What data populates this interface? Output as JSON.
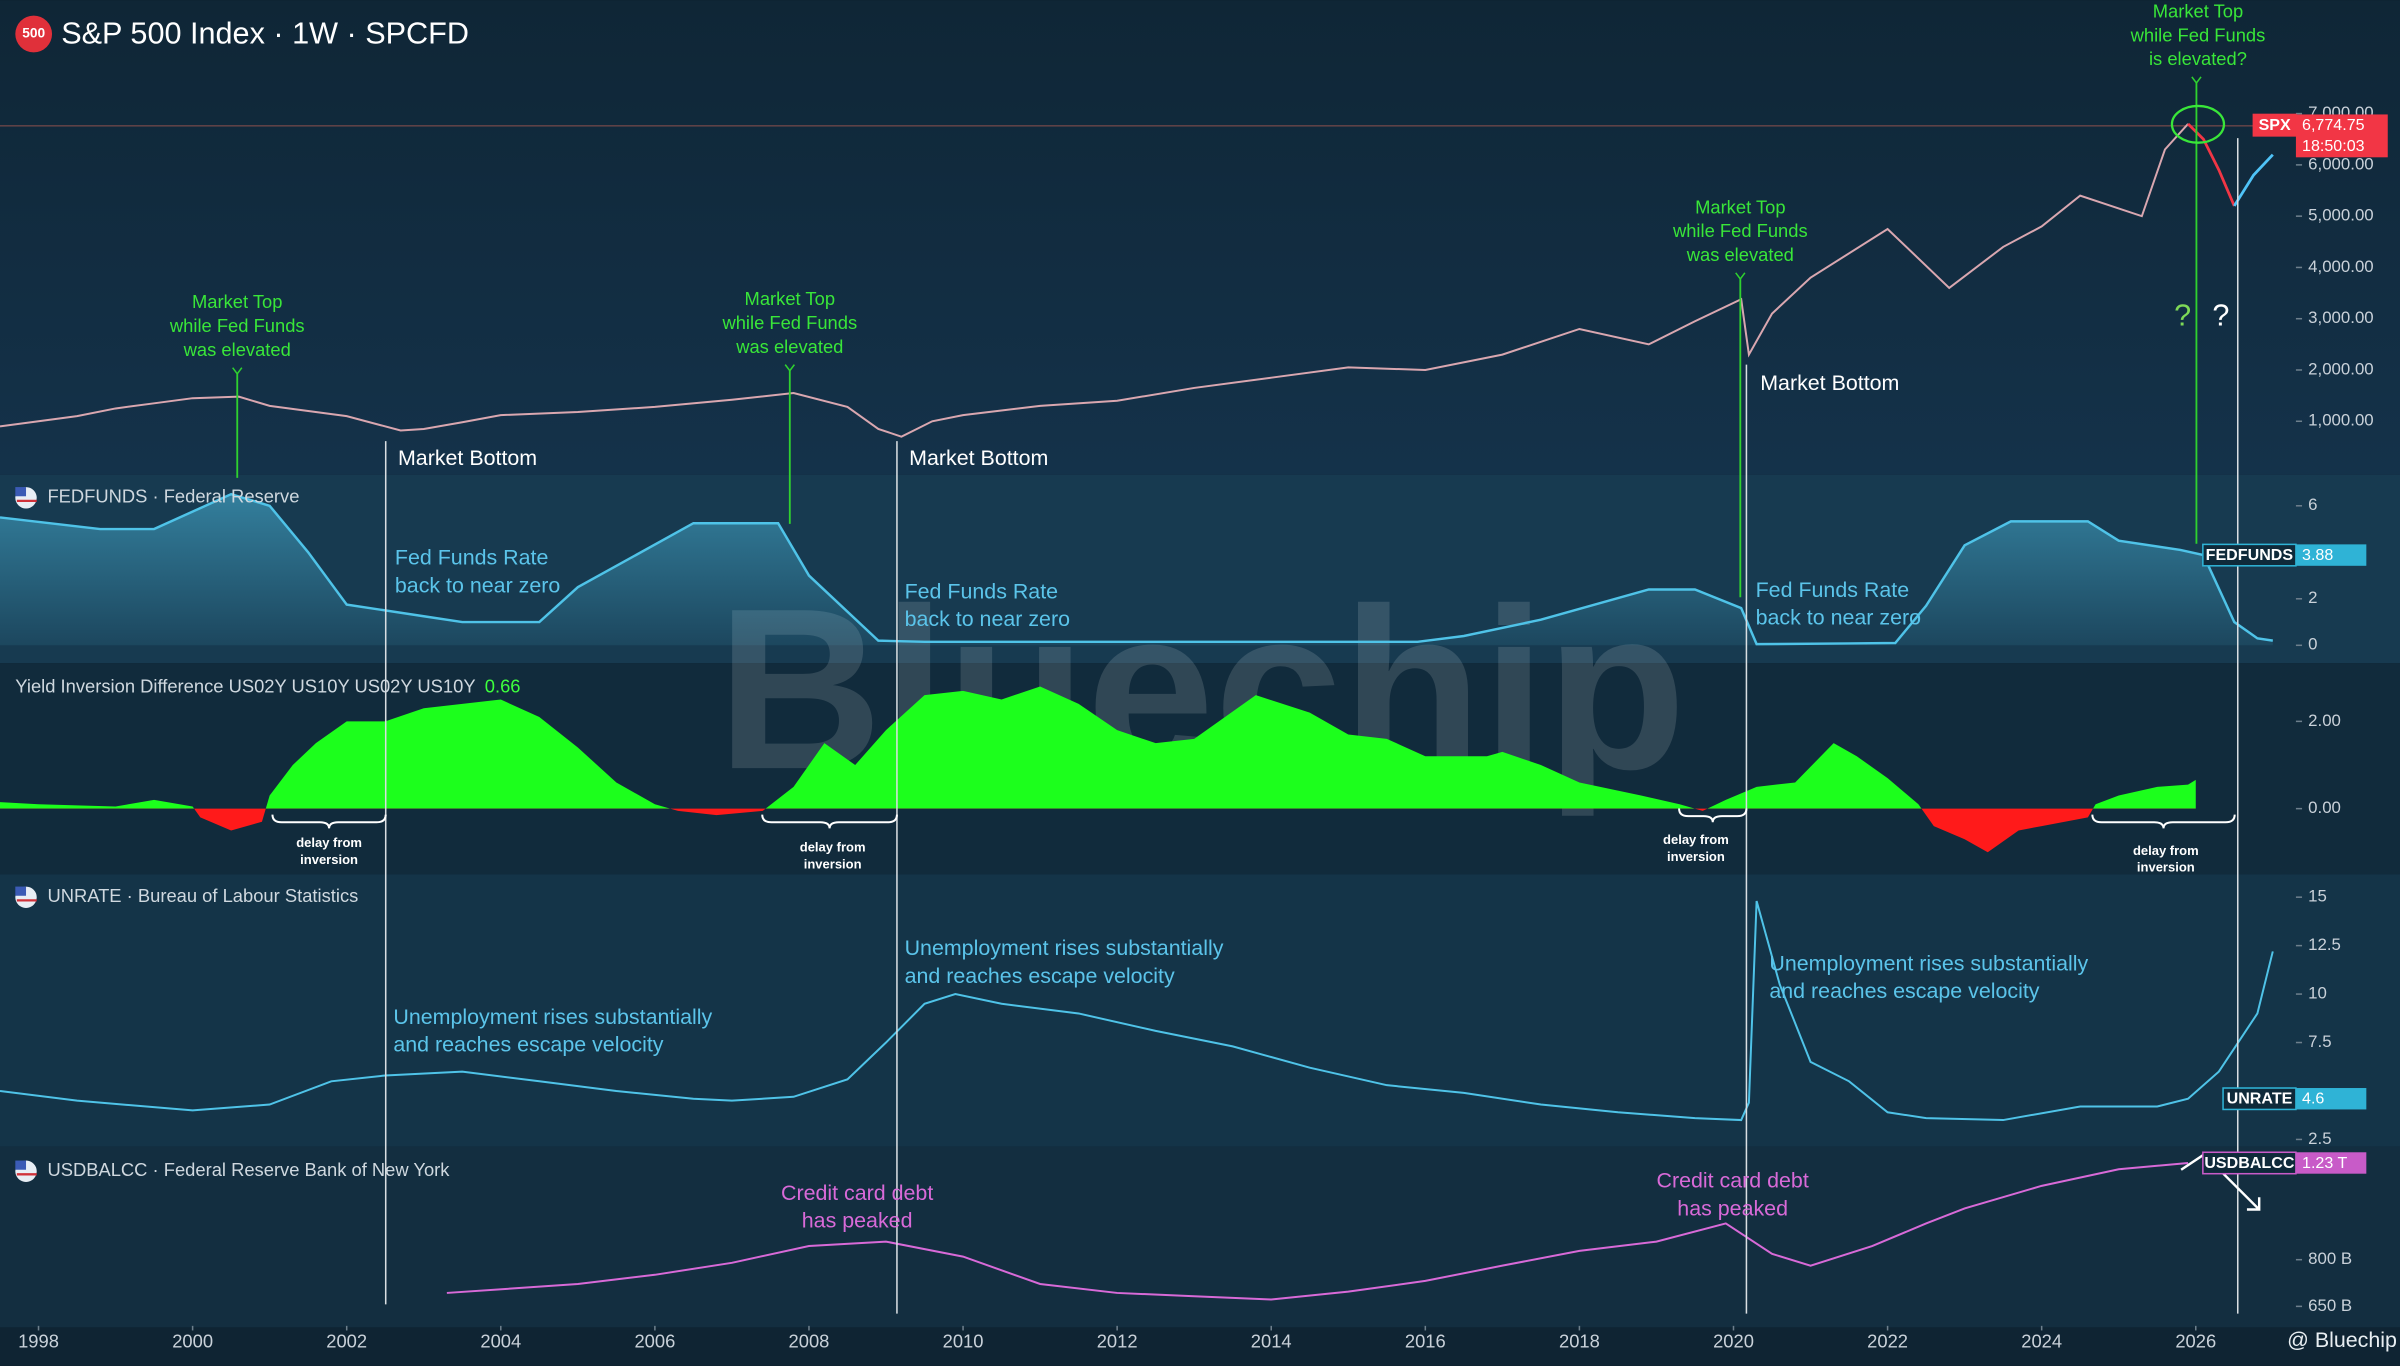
{
  "chart_data": [
    {
      "type": "line",
      "title": "S&P 500 Index · 1W · SPCFD",
      "symbol_icon": "500",
      "xlim": [
        1997.5,
        2027.3
      ],
      "ylim": [
        0,
        8000
      ],
      "yticks": [
        {
          "value": 1000,
          "label": "1,000.00"
        },
        {
          "value": 2000,
          "label": "2,000.00"
        },
        {
          "value": 3000,
          "label": "3,000.00"
        },
        {
          "value": 4000,
          "label": "4,000.00"
        },
        {
          "value": 5000,
          "label": "5,000.00"
        },
        {
          "value": 6000,
          "label": "6,000.00"
        },
        {
          "value": 7000,
          "label": "7,000.00"
        }
      ],
      "series": [
        {
          "name": "SPX",
          "color": "#d9a7b0",
          "x": [
            1997.5,
            1998,
            1998.5,
            1999,
            1999.5,
            2000,
            2000.6,
            2001,
            2001.5,
            2002,
            2002.7,
            2003,
            2003.5,
            2004,
            2005,
            2006,
            2007,
            2007.8,
            2008.5,
            2008.9,
            2009.2,
            2009.6,
            2010,
            2011,
            2012,
            2013,
            2014,
            2015,
            2016,
            2017,
            2018,
            2018.9,
            2019.5,
            2020.1,
            2020.2,
            2020.5,
            2021,
            2022,
            2022.8,
            2023.5,
            2024,
            2024.5,
            2025.3,
            2025.6,
            2025.9
          ],
          "values": [
            900,
            1000,
            1100,
            1250,
            1350,
            1450,
            1480,
            1300,
            1200,
            1100,
            820,
            850,
            980,
            1120,
            1180,
            1280,
            1420,
            1550,
            1280,
            850,
            700,
            1000,
            1120,
            1300,
            1400,
            1650,
            1850,
            2050,
            2000,
            2300,
            2800,
            2500,
            2950,
            3380,
            2300,
            3100,
            3800,
            4750,
            3600,
            4400,
            4800,
            5400,
            5000,
            6300,
            6800
          ]
        },
        {
          "color": "#f23645",
          "x": [
            2025.9,
            2026.1,
            2026.3,
            2026.5
          ],
          "values": [
            6800,
            6500,
            5900,
            5200
          ]
        },
        {
          "color": "#4fc3f7",
          "x": [
            2026.5,
            2026.75,
            2027
          ],
          "values": [
            5200,
            5800,
            6200
          ]
        }
      ],
      "last_value": {
        "value": 6774.75,
        "label": "6,774.75"
      },
      "countdown": "18:50:03",
      "annotations": [
        [
          "Market Top",
          "while Fed Funds",
          "was elevated"
        ],
        [
          "Market Top",
          "while Fed Funds",
          "was elevated"
        ],
        [
          "Market Top",
          "while Fed Funds",
          "was elevated"
        ],
        [
          "Market Top",
          "while Fed Funds",
          "is elevated?"
        ],
        [
          "Market Bottom"
        ],
        [
          "Market Bottom"
        ],
        [
          "Market Bottom"
        ],
        [
          "?"
        ],
        [
          "?"
        ]
      ]
    },
    {
      "type": "area",
      "title": "FEDFUNDS · Federal Reserve",
      "xlim": [
        1997.5,
        2027.3
      ],
      "ylim": [
        -0.7,
        7.2
      ],
      "yticks": [
        0,
        2,
        6
      ],
      "series": [
        {
          "name": "FEDFUNDS",
          "color": "#4fc3e8",
          "x": [
            1997.5,
            1998.8,
            1999.5,
            2000.5,
            2001,
            2001.5,
            2002,
            2003,
            2003.5,
            2004.5,
            2005,
            2006.5,
            2007.6,
            2008,
            2008.9,
            2009.5,
            2015.9,
            2016.5,
            2017.5,
            2018.9,
            2019.5,
            2020.1,
            2020.3,
            2021.5,
            2022.1,
            2022.5,
            2023,
            2023.6,
            2024.6,
            2025,
            2025.8,
            2026.1,
            2026.5,
            2026.8,
            2027
          ],
          "values": [
            5.5,
            5.0,
            5.0,
            6.5,
            6.0,
            4.0,
            1.75,
            1.25,
            1.0,
            1.0,
            2.5,
            5.25,
            5.25,
            3.0,
            0.2,
            0.15,
            0.15,
            0.4,
            1.1,
            2.4,
            2.4,
            1.6,
            0.05,
            0.08,
            0.1,
            1.7,
            4.3,
            5.33,
            5.33,
            4.5,
            4.1,
            3.88,
            1.0,
            0.3,
            0.2
          ]
        }
      ],
      "last_value": 3.88,
      "annotations": [
        [
          "Fed Funds Rate",
          "back to near zero"
        ],
        [
          "Fed Funds Rate",
          "back to near zero"
        ],
        [
          "Fed Funds Rate",
          "back to near zero"
        ]
      ]
    },
    {
      "type": "area",
      "title": "Yield Inversion Difference US02Y US10Y US02Y US10Y",
      "last_value": 0.66,
      "xlim": [
        1997.5,
        2027.3
      ],
      "ylim": [
        -1.47,
        3.3
      ],
      "yticks": [
        {
          "value": 0,
          "label": "0.00"
        },
        {
          "value": 2,
          "label": "2.00"
        }
      ],
      "series": [
        {
          "color": "#1cff1c",
          "negative_color": "#ff1a1a",
          "x": [
            1997.5,
            1998,
            1999,
            1999.5,
            2000,
            2000.1,
            2000.5,
            2000.9,
            2001,
            2001.3,
            2001.6,
            2002,
            2002.5,
            2003,
            2003.5,
            2004,
            2004.5,
            2005,
            2005.5,
            2006,
            2006.3,
            2006.8,
            2007.4,
            2007.8,
            2008.2,
            2008.6,
            2009,
            2009.5,
            2010,
            2010.5,
            2011,
            2011.5,
            2012,
            2012.5,
            2013,
            2013.8,
            2014.5,
            2015,
            2015.5,
            2016,
            2016.8,
            2017,
            2017.5,
            2018,
            2018.8,
            2019.3,
            2019.6,
            2019.9,
            2020.3,
            2020.8,
            2021.3,
            2021.6,
            2022,
            2022.4,
            2022.6,
            2023,
            2023.3,
            2023.7,
            2024,
            2024.6,
            2024.7,
            2025,
            2025.5,
            2025.9,
            2026
          ],
          "values": [
            0.15,
            0.1,
            0.05,
            0.2,
            0.05,
            -0.2,
            -0.5,
            -0.3,
            0.3,
            1.0,
            1.5,
            2.0,
            2.0,
            2.3,
            2.4,
            2.5,
            2.1,
            1.4,
            0.6,
            0.1,
            -0.05,
            -0.15,
            -0.05,
            0.5,
            1.5,
            1.0,
            1.8,
            2.6,
            2.7,
            2.5,
            2.8,
            2.4,
            1.8,
            1.5,
            1.6,
            2.6,
            2.2,
            1.7,
            1.6,
            1.2,
            1.2,
            1.3,
            1.0,
            0.6,
            0.3,
            0.1,
            -0.05,
            0.2,
            0.5,
            0.6,
            1.5,
            1.2,
            0.7,
            0.1,
            -0.4,
            -0.7,
            -1.0,
            -0.5,
            -0.4,
            -0.2,
            0.1,
            0.3,
            0.5,
            0.55,
            0.66
          ]
        }
      ],
      "annotations": [
        [
          "delay from",
          "inversion"
        ],
        [
          "delay from",
          "inversion"
        ],
        [
          "delay from",
          "inversion"
        ],
        [
          "delay from",
          "inversion"
        ]
      ]
    },
    {
      "type": "line",
      "title": "UNRATE · Bureau of Labour Statistics",
      "xlim": [
        1997.5,
        2027.3
      ],
      "ylim": [
        2.2,
        16.1
      ],
      "yticks": [
        2.5,
        7.5,
        10,
        12.5,
        15
      ],
      "series": [
        {
          "name": "UNRATE",
          "color": "#4fc3e8",
          "x": [
            1997.5,
            1998.5,
            2000,
            2001,
            2001.8,
            2002.5,
            2003.5,
            2004.5,
            2005.5,
            2006.5,
            2007,
            2007.8,
            2008.5,
            2009,
            2009.5,
            2009.9,
            2010.5,
            2011.5,
            2012.5,
            2013.5,
            2014.5,
            2015.5,
            2016.5,
            2017.5,
            2018.5,
            2019.5,
            2020.1,
            2020.2,
            2020.3,
            2020.6,
            2021,
            2021.5,
            2022,
            2022.5,
            2023.5,
            2024.5,
            2025.5,
            2025.9,
            2026.3,
            2026.8,
            2027
          ],
          "values": [
            5.0,
            4.5,
            4.0,
            4.3,
            5.5,
            5.8,
            6.0,
            5.5,
            5.0,
            4.6,
            4.5,
            4.7,
            5.6,
            7.5,
            9.5,
            10.0,
            9.5,
            9.0,
            8.1,
            7.3,
            6.2,
            5.3,
            4.9,
            4.3,
            3.9,
            3.6,
            3.5,
            4.4,
            14.8,
            10.5,
            6.5,
            5.5,
            3.9,
            3.6,
            3.5,
            4.2,
            4.2,
            4.6,
            6.0,
            9.0,
            12.2
          ]
        }
      ],
      "last_value": 4.6,
      "annotations": [
        [
          "Unemployment rises substantially",
          "and reaches escape velocity"
        ],
        [
          "Unemployment rises substantially",
          "and reaches escape velocity"
        ],
        [
          "Unemployment rises substantially",
          "and reaches escape velocity"
        ]
      ]
    },
    {
      "type": "line",
      "title": "USDBALCC · Federal Reserve Bank of New York",
      "log_scale": true,
      "xlim": [
        1997.5,
        2027.3
      ],
      "ylim": [
        596,
        1313
      ],
      "yticks": [
        {
          "value": 650,
          "label": "650 B"
        },
        {
          "value": 800,
          "label": "800 B"
        }
      ],
      "xticks": [
        1998,
        2000,
        2002,
        2004,
        2006,
        2008,
        2010,
        2012,
        2014,
        2016,
        2018,
        2020,
        2022,
        2024,
        2026
      ],
      "series": [
        {
          "name": "USDBALCC",
          "color": "#d86ad8",
          "x": [
            2003.3,
            2005,
            2006,
            2007,
            2008,
            2009,
            2010,
            2011,
            2012,
            2013,
            2014,
            2015,
            2016,
            2017,
            2018,
            2019,
            2019.9,
            2020.5,
            2021,
            2021.8,
            2022.5,
            2023,
            2024,
            2025,
            2025.9
          ],
          "values": [
            690,
            718,
            748,
            789,
            850,
            867,
            811,
            718,
            690,
            680,
            670,
            694,
            728,
            779,
            832,
            867,
            940,
            821,
            779,
            850,
            940,
            1005,
            1111,
            1196,
            1230
          ]
        }
      ],
      "last_value": {
        "value": 1230,
        "label": "1.23 T"
      },
      "annotations": [
        [
          "Credit card debt",
          "has peaked"
        ],
        [
          "Credit card debt",
          "has peaked"
        ]
      ]
    }
  ],
  "watermark": "Bluechip",
  "credit": "@ Bluechip"
}
